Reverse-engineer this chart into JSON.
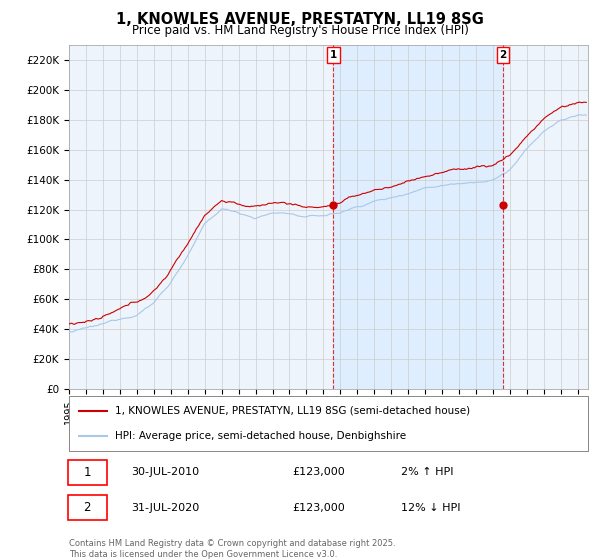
{
  "title": "1, KNOWLES AVENUE, PRESTATYN, LL19 8SG",
  "subtitle": "Price paid vs. HM Land Registry's House Price Index (HPI)",
  "ylabel_ticks": [
    "£0",
    "£20K",
    "£40K",
    "£60K",
    "£80K",
    "£100K",
    "£120K",
    "£140K",
    "£160K",
    "£180K",
    "£200K",
    "£220K"
  ],
  "ytick_values": [
    0,
    20000,
    40000,
    60000,
    80000,
    100000,
    120000,
    140000,
    160000,
    180000,
    200000,
    220000
  ],
  "ylim": [
    0,
    230000
  ],
  "xlim_start": 1995,
  "xlim_end": 2025.6,
  "hpi_color": "#a8c8e8",
  "price_color": "#cc0000",
  "background_color": "#ffffff",
  "plot_bg_color": "#eef4fb",
  "grid_color": "#cccccc",
  "shade_color": "#ddeeff",
  "vline_color": "#dd0000",
  "purchase1_year": 2010.583,
  "purchase1_price": 123000,
  "purchase1_label": "1",
  "purchase1_date": "30-JUL-2010",
  "purchase1_hpi_diff": "2% ↑ HPI",
  "purchase2_year": 2020.583,
  "purchase2_price": 123000,
  "purchase2_label": "2",
  "purchase2_date": "31-JUL-2020",
  "purchase2_hpi_diff": "12% ↓ HPI",
  "legend1": "1, KNOWLES AVENUE, PRESTATYN, LL19 8SG (semi-detached house)",
  "legend2": "HPI: Average price, semi-detached house, Denbighshire",
  "footer": "Contains HM Land Registry data © Crown copyright and database right 2025.\nThis data is licensed under the Open Government Licence v3.0.",
  "hpi_anchors_t": [
    0,
    1,
    2,
    3,
    4,
    5,
    6,
    7,
    8,
    9,
    10,
    11,
    12,
    13,
    14,
    15,
    16,
    17,
    18,
    19,
    20,
    21,
    22,
    23,
    24,
    25,
    26,
    27,
    28,
    29,
    30
  ],
  "hpi_anchors_v": [
    38000,
    40000,
    42000,
    46000,
    50000,
    58000,
    72000,
    90000,
    110000,
    120000,
    118000,
    115000,
    118000,
    118000,
    115000,
    116000,
    118000,
    122000,
    126000,
    128000,
    132000,
    136000,
    138000,
    140000,
    142000,
    143000,
    150000,
    163000,
    175000,
    182000,
    185000
  ]
}
